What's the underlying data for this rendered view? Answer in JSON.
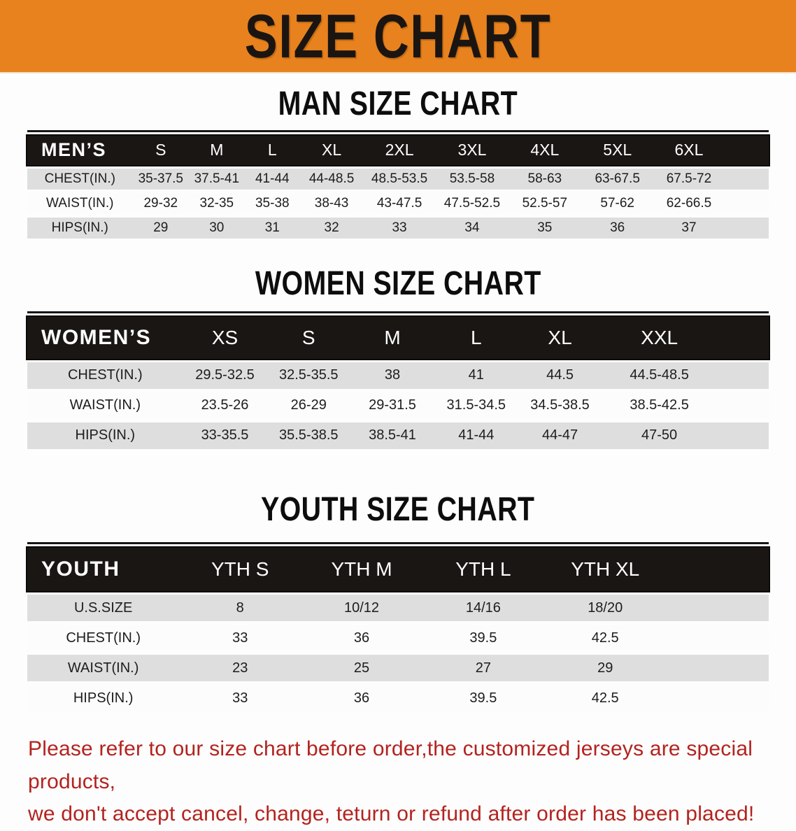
{
  "banner": {
    "title": "SIZE CHART"
  },
  "colors": {
    "banner_bg": "#e8821e",
    "header_band_bg": "#1a1614",
    "row_stripe_bg": "#dedede",
    "note_text": "#b3231f"
  },
  "sections": [
    {
      "title": "MAN SIZE CHART",
      "header_label": "MEN’S",
      "columns": [
        "S",
        "M",
        "L",
        "XL",
        "2XL",
        "3XL",
        "4XL",
        "5XL",
        "6XL"
      ],
      "rows": [
        {
          "label": "CHEST(IN.)",
          "values": [
            "35-37.5",
            "37.5-41",
            "41-44",
            "44-48.5",
            "48.5-53.5",
            "53.5-58",
            "58-63",
            "63-67.5",
            "67.5-72"
          ]
        },
        {
          "label": "WAIST(IN.)",
          "values": [
            "29-32",
            "32-35",
            "35-38",
            "38-43",
            "43-47.5",
            "47.5-52.5",
            "52.5-57",
            "57-62",
            "62-66.5"
          ]
        },
        {
          "label": "HIPS(IN.)",
          "values": [
            "29",
            "30",
            "31",
            "32",
            "33",
            "34",
            "35",
            "36",
            "37"
          ]
        }
      ]
    },
    {
      "title": "WOMEN SIZE CHART",
      "header_label": "WOMEN’S",
      "columns": [
        "XS",
        "S",
        "M",
        "L",
        "XL",
        "XXL"
      ],
      "rows": [
        {
          "label": "CHEST(IN.)",
          "values": [
            "29.5-32.5",
            "32.5-35.5",
            "38",
            "41",
            "44.5",
            "44.5-48.5"
          ]
        },
        {
          "label": "WAIST(IN.)",
          "values": [
            "23.5-26",
            "26-29",
            "29-31.5",
            "31.5-34.5",
            "34.5-38.5",
            "38.5-42.5"
          ]
        },
        {
          "label": "HIPS(IN.)",
          "values": [
            "33-35.5",
            "35.5-38.5",
            "38.5-41",
            "41-44",
            "44-47",
            "47-50"
          ]
        }
      ]
    },
    {
      "title": "YOUTH SIZE CHART",
      "header_label": "YOUTH",
      "columns": [
        "YTH S",
        "YTH M",
        "YTH L",
        "YTH XL"
      ],
      "rows": [
        {
          "label": "U.S.SIZE",
          "values": [
            "8",
            "10/12",
            "14/16",
            "18/20"
          ]
        },
        {
          "label": "CHEST(IN.)",
          "values": [
            "33",
            "36",
            "39.5",
            "42.5"
          ]
        },
        {
          "label": "WAIST(IN.)",
          "values": [
            "23",
            "25",
            "27",
            "29"
          ]
        },
        {
          "label": "HIPS(IN.)",
          "values": [
            "33",
            "36",
            "39.5",
            "42.5"
          ]
        }
      ]
    }
  ],
  "note": {
    "line1": "Please refer to our size chart before order,the customized jerseys are special products,",
    "line2": "we don't accept cancel, change, teturn or refund after order has been placed!"
  }
}
